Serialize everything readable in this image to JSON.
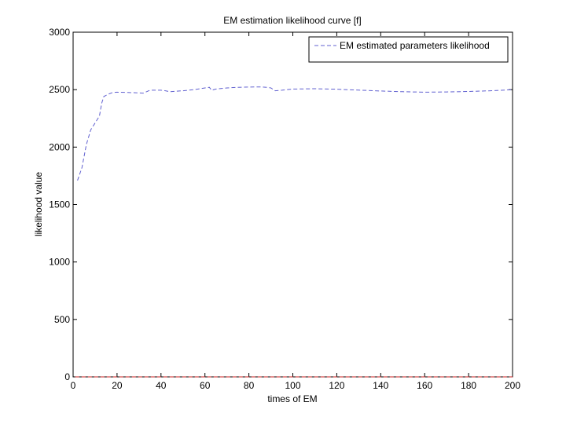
{
  "chart_data": {
    "type": "line",
    "title": "EM estimation likelihood curve [f]",
    "xlabel": "times of EM",
    "ylabel": "likelihood value",
    "xlim": [
      0,
      200
    ],
    "ylim": [
      0,
      3000
    ],
    "xticks": [
      0,
      20,
      40,
      60,
      80,
      100,
      120,
      140,
      160,
      180,
      200
    ],
    "yticks": [
      0,
      500,
      1000,
      1500,
      2000,
      2500,
      3000
    ],
    "grid": false,
    "legend_position": "top-right",
    "series": [
      {
        "name": "EM estimated parameters likelihood",
        "color": "#6060d0",
        "style": "dashed",
        "x": [
          2,
          4,
          6,
          8,
          10,
          12,
          13,
          14,
          16,
          18,
          20,
          25,
          30,
          32,
          35,
          40,
          42,
          44,
          46,
          50,
          55,
          60,
          62,
          63,
          65,
          70,
          75,
          80,
          85,
          88,
          90,
          92,
          95,
          100,
          110,
          120,
          130,
          140,
          150,
          160,
          170,
          180,
          190,
          200
        ],
        "y": [
          1710,
          1820,
          2020,
          2150,
          2210,
          2270,
          2380,
          2440,
          2460,
          2475,
          2478,
          2475,
          2472,
          2470,
          2495,
          2495,
          2490,
          2482,
          2485,
          2490,
          2500,
          2515,
          2520,
          2495,
          2505,
          2515,
          2520,
          2522,
          2524,
          2520,
          2515,
          2490,
          2495,
          2505,
          2508,
          2504,
          2496,
          2488,
          2482,
          2478,
          2480,
          2484,
          2490,
          2500
        ]
      },
      {
        "name": "",
        "color": "#cc2222",
        "style": "dashed",
        "x": [
          1,
          200
        ],
        "y": [
          0,
          0
        ]
      }
    ]
  }
}
